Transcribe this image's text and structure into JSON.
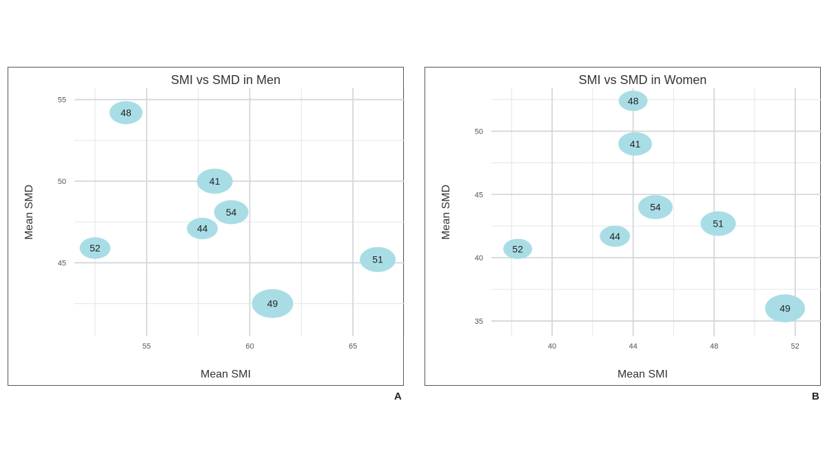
{
  "chart_data": [
    {
      "type": "scatter",
      "panel_label": "A",
      "title": "SMI vs SMD in Men",
      "xlabel": "Mean SMI",
      "ylabel": "Mean SMD",
      "xlim": [
        51.5,
        67.5
      ],
      "ylim": [
        40.5,
        55.7
      ],
      "xticks": [
        55,
        60,
        65
      ],
      "yticks": [
        45,
        50,
        55
      ],
      "minor_x": [
        52.5,
        57.5,
        62.5,
        67.5
      ],
      "minor_y": [
        42.5,
        47.5,
        52.5
      ],
      "grid": true,
      "bubble_color": "#a9dde6",
      "points": [
        {
          "label": "48",
          "x": 54.0,
          "y": 54.2,
          "size": 0.7
        },
        {
          "label": "41",
          "x": 58.3,
          "y": 50.0,
          "size": 0.8
        },
        {
          "label": "54",
          "x": 59.1,
          "y": 48.1,
          "size": 0.75
        },
        {
          "label": "44",
          "x": 57.7,
          "y": 47.1,
          "size": 0.62
        },
        {
          "label": "52",
          "x": 52.5,
          "y": 45.9,
          "size": 0.62
        },
        {
          "label": "51",
          "x": 66.2,
          "y": 45.2,
          "size": 0.8
        },
        {
          "label": "49",
          "x": 61.1,
          "y": 42.5,
          "size": 1.0
        }
      ]
    },
    {
      "type": "scatter",
      "panel_label": "B",
      "title": "SMI vs SMD in Women",
      "xlabel": "Mean SMI",
      "ylabel": "Mean SMD",
      "xlim": [
        37,
        53.3
      ],
      "ylim": [
        33.8,
        53.4
      ],
      "xticks": [
        40,
        44,
        48,
        52
      ],
      "yticks": [
        35,
        40,
        45,
        50
      ],
      "minor_x": [
        38,
        42,
        46,
        50
      ],
      "minor_y": [
        37.5,
        42.5,
        47.5,
        52.5
      ],
      "grid": true,
      "bubble_color": "#a9dde6",
      "points": [
        {
          "label": "48",
          "x": 44.0,
          "y": 52.4,
          "size": 0.55
        },
        {
          "label": "41",
          "x": 44.1,
          "y": 49.0,
          "size": 0.72
        },
        {
          "label": "54",
          "x": 45.1,
          "y": 44.0,
          "size": 0.75
        },
        {
          "label": "51",
          "x": 48.2,
          "y": 42.7,
          "size": 0.78
        },
        {
          "label": "44",
          "x": 43.1,
          "y": 41.7,
          "size": 0.6
        },
        {
          "label": "52",
          "x": 38.3,
          "y": 40.7,
          "size": 0.55
        },
        {
          "label": "49",
          "x": 51.5,
          "y": 36.0,
          "size": 0.95
        }
      ]
    }
  ]
}
